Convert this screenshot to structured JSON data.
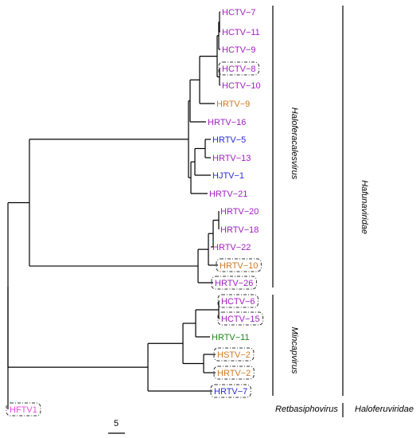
{
  "colors": {
    "purple": "#a020c0",
    "orange": "#d07820",
    "blue": "#2a2ad8",
    "green": "#1c8a1c",
    "pink": "#f048e0",
    "line": "#000000",
    "box": "#333333"
  },
  "tips": [
    {
      "id": "t1",
      "label": "HCTV−7",
      "color": "purple",
      "boxed": false
    },
    {
      "id": "t2",
      "label": "HCTV−11",
      "color": "purple",
      "boxed": false
    },
    {
      "id": "t3",
      "label": "HCTV−9",
      "color": "purple",
      "boxed": false
    },
    {
      "id": "t4",
      "label": "HCTV−8",
      "color": "purple",
      "boxed": true
    },
    {
      "id": "t5",
      "label": "HCTV−10",
      "color": "purple",
      "boxed": false
    },
    {
      "id": "t6",
      "label": "HRTV−9",
      "color": "orange",
      "boxed": false
    },
    {
      "id": "t7",
      "label": "HRTV−16",
      "color": "purple",
      "boxed": false
    },
    {
      "id": "t8",
      "label": "HRTV−5",
      "color": "blue",
      "boxed": false
    },
    {
      "id": "t9",
      "label": "HRTV−13",
      "color": "purple",
      "boxed": false
    },
    {
      "id": "t10",
      "label": "HJTV−1",
      "color": "blue",
      "boxed": false
    },
    {
      "id": "t11",
      "label": "HRTV−21",
      "color": "purple",
      "boxed": false
    },
    {
      "id": "t12",
      "label": "HRTV−20",
      "color": "purple",
      "boxed": false
    },
    {
      "id": "t13",
      "label": "HRTV−18",
      "color": "purple",
      "boxed": false
    },
    {
      "id": "t14",
      "label": "HRTV−22",
      "color": "purple",
      "boxed": false
    },
    {
      "id": "t15",
      "label": "HRTV−10",
      "color": "orange",
      "boxed": true
    },
    {
      "id": "t16",
      "label": "HRTV−26",
      "color": "purple",
      "boxed": true
    },
    {
      "id": "t17",
      "label": "HCTV−6",
      "color": "purple",
      "boxed": true
    },
    {
      "id": "t18",
      "label": "HCTV−15",
      "color": "purple",
      "boxed": true
    },
    {
      "id": "t19",
      "label": "HRTV−11",
      "color": "green",
      "boxed": false
    },
    {
      "id": "t20",
      "label": "HSTV−2",
      "color": "orange",
      "boxed": true
    },
    {
      "id": "t21",
      "label": "HRTV−2",
      "color": "orange",
      "boxed": true
    },
    {
      "id": "t22",
      "label": "HRTV−7",
      "color": "blue",
      "boxed": true
    },
    {
      "id": "t23",
      "label": "HFTV1",
      "color": "pink",
      "boxed": true
    }
  ],
  "genera": [
    {
      "name": "Haloferacalesvirus",
      "tips": [
        "t1",
        "t16"
      ]
    },
    {
      "name": "Mincapvirus",
      "tips": [
        "t17",
        "t22"
      ]
    },
    {
      "name": "Retbasiphovirus",
      "tips": [
        "t23",
        "t23"
      ]
    }
  ],
  "families": [
    {
      "name": "Hafunaviridae",
      "tips": [
        "t1",
        "t22"
      ]
    },
    {
      "name": "Haloferuviridae",
      "tips": [
        "t23",
        "t23"
      ]
    }
  ],
  "scale_bar": {
    "label": "5"
  }
}
